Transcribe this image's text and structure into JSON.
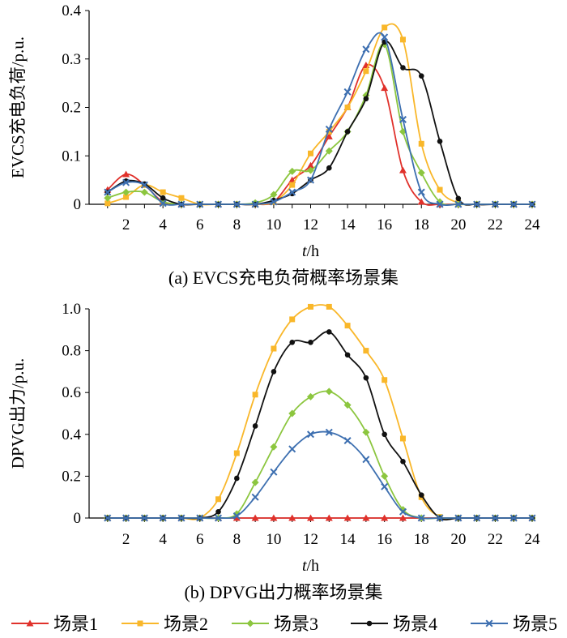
{
  "legend": {
    "items": [
      {
        "label": "场景1",
        "color": "#e0312b",
        "marker": "triangle"
      },
      {
        "label": "场景2",
        "color": "#f9b72a",
        "marker": "square"
      },
      {
        "label": "场景3",
        "color": "#8cc63f",
        "marker": "diamond"
      },
      {
        "label": "场景4",
        "color": "#111111",
        "marker": "circle"
      },
      {
        "label": "场景5",
        "color": "#3d6fb0",
        "marker": "x"
      }
    ]
  },
  "chart_data": [
    {
      "type": "line",
      "id": "a",
      "caption": "(a)  EVCS充电负荷概率场景集",
      "title": "",
      "ylabel": "EVCS充电负荷/p.u.",
      "xlabel_italic": "t",
      "xlabel_unit": "/h",
      "xlim": [
        0,
        24
      ],
      "ylim": [
        0,
        0.4
      ],
      "xticks": [
        2,
        4,
        6,
        8,
        10,
        12,
        14,
        16,
        18,
        20,
        22,
        24
      ],
      "yticks": [
        0,
        0.1,
        0.2,
        0.3,
        0.4
      ],
      "ytick_labels": [
        "0",
        "0.1",
        "0.2",
        "0.3",
        "0.4"
      ],
      "x": [
        1,
        2,
        3,
        4,
        5,
        6,
        7,
        8,
        9,
        10,
        11,
        12,
        13,
        14,
        15,
        16,
        17,
        18,
        19,
        20,
        21,
        22,
        23,
        24
      ],
      "series": [
        {
          "name": "场景1",
          "values": [
            0.03,
            0.062,
            0.04,
            0.005,
            0,
            0,
            0,
            0,
            0,
            0.005,
            0.05,
            0.08,
            0.14,
            0.2,
            0.287,
            0.24,
            0.07,
            0.005,
            0,
            0,
            0,
            0,
            0,
            0
          ]
        },
        {
          "name": "场景2",
          "values": [
            0.002,
            0.015,
            0.04,
            0.025,
            0.013,
            0,
            0,
            0,
            0,
            0.005,
            0.04,
            0.105,
            0.15,
            0.2,
            0.275,
            0.365,
            0.34,
            0.125,
            0.03,
            0.003,
            0,
            0,
            0,
            0
          ]
        },
        {
          "name": "场景3",
          "values": [
            0.013,
            0.025,
            0.025,
            0.005,
            0,
            0,
            0,
            0,
            0.003,
            0.02,
            0.068,
            0.07,
            0.11,
            0.15,
            0.225,
            0.33,
            0.15,
            0.065,
            0.005,
            0,
            0,
            0,
            0,
            0
          ]
        },
        {
          "name": "场景4",
          "values": [
            0.025,
            0.048,
            0.042,
            0.013,
            0,
            0,
            0,
            0,
            0,
            0.008,
            0.022,
            0.05,
            0.075,
            0.15,
            0.218,
            0.335,
            0.282,
            0.265,
            0.13,
            0.012,
            0,
            0,
            0,
            0
          ]
        },
        {
          "name": "场景5",
          "values": [
            0.025,
            0.045,
            0.04,
            0.002,
            0,
            0,
            0,
            0,
            0,
            0.005,
            0.025,
            0.05,
            0.155,
            0.232,
            0.32,
            0.345,
            0.175,
            0.025,
            0,
            0,
            0,
            0,
            0,
            0
          ]
        }
      ]
    },
    {
      "type": "line",
      "id": "b",
      "caption": "(b)  DPVG出力概率场景集",
      "title": "",
      "ylabel": "DPVG出力/p.u.",
      "xlabel_italic": "t",
      "xlabel_unit": "/h",
      "xlim": [
        0,
        24
      ],
      "ylim": [
        0,
        1.0
      ],
      "xticks": [
        2,
        4,
        6,
        8,
        10,
        12,
        14,
        16,
        18,
        20,
        22,
        24
      ],
      "yticks": [
        0,
        0.2,
        0.4,
        0.6,
        0.8,
        1.0
      ],
      "ytick_labels": [
        "0",
        "0.2",
        "0.4",
        "0.6",
        "0.8",
        "1.0"
      ],
      "x": [
        1,
        2,
        3,
        4,
        5,
        6,
        7,
        8,
        9,
        10,
        11,
        12,
        13,
        14,
        15,
        16,
        17,
        18,
        19,
        20,
        21,
        22,
        23,
        24
      ],
      "series": [
        {
          "name": "场景1",
          "values": [
            0,
            0,
            0,
            0,
            0,
            0,
            0,
            0,
            0,
            0,
            0,
            0,
            0,
            0,
            0,
            0,
            0,
            0,
            0,
            0,
            0,
            0,
            0,
            0
          ]
        },
        {
          "name": "场景2",
          "values": [
            0,
            0,
            0,
            0,
            0,
            0,
            0.09,
            0.31,
            0.59,
            0.81,
            0.95,
            1.01,
            1.01,
            0.92,
            0.8,
            0.66,
            0.38,
            0.1,
            0.005,
            0,
            0,
            0,
            0,
            0
          ]
        },
        {
          "name": "场景3",
          "values": [
            0,
            0,
            0,
            0,
            0,
            0,
            0,
            0.02,
            0.17,
            0.34,
            0.5,
            0.58,
            0.605,
            0.54,
            0.41,
            0.2,
            0.04,
            0,
            0,
            0,
            0,
            0,
            0,
            0
          ]
        },
        {
          "name": "场景4",
          "values": [
            0,
            0,
            0,
            0,
            0,
            0,
            0.03,
            0.19,
            0.44,
            0.7,
            0.84,
            0.84,
            0.89,
            0.78,
            0.67,
            0.4,
            0.27,
            0.11,
            0,
            0,
            0,
            0,
            0,
            0
          ]
        },
        {
          "name": "场景5",
          "values": [
            0,
            0,
            0,
            0,
            0,
            0,
            0,
            0.01,
            0.1,
            0.22,
            0.33,
            0.4,
            0.41,
            0.37,
            0.28,
            0.15,
            0.03,
            0,
            0,
            0,
            0,
            0,
            0,
            0
          ]
        }
      ]
    }
  ]
}
